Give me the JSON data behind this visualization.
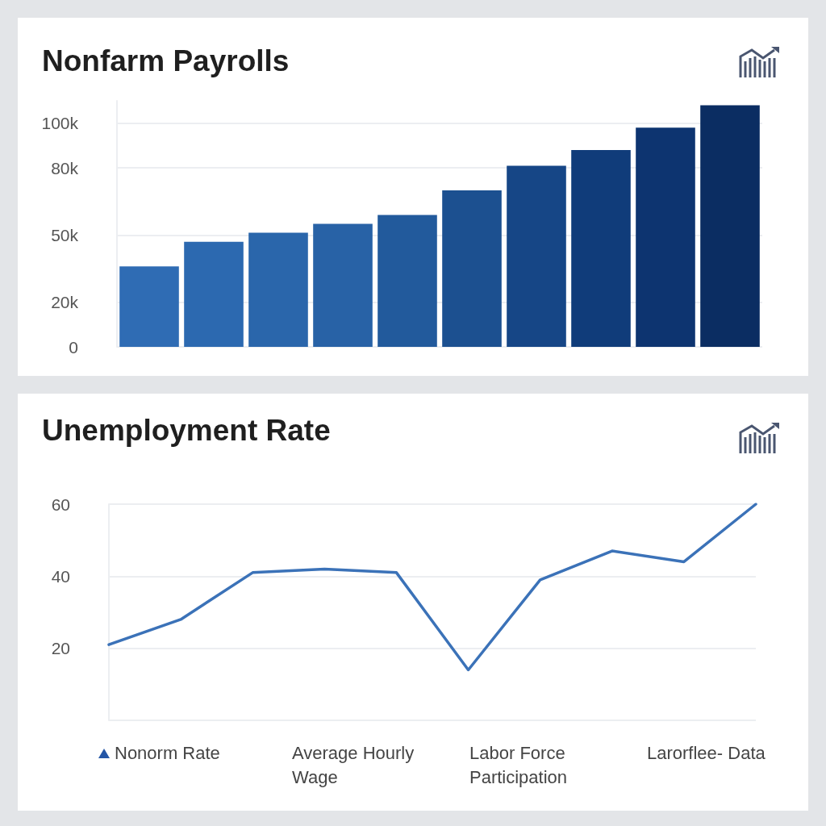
{
  "chart_data": [
    {
      "type": "bar",
      "title": "Nonfarm Payrolls",
      "categories": [
        null,
        null,
        null,
        null,
        null,
        null,
        null,
        null,
        null,
        null
      ],
      "values": [
        36000,
        47000,
        51000,
        55000,
        59000,
        70000,
        81000,
        88000,
        98000,
        108000
      ],
      "colors": [
        "#2f6cb4",
        "#2c69b0",
        "#2a66ab",
        "#2862a6",
        "#225a9c",
        "#1c5090",
        "#164686",
        "#103c7a",
        "#0d3470",
        "#0b2d62"
      ],
      "ylim": [
        0,
        110000
      ],
      "yticks": [
        0,
        {
          "value": 20000,
          "label": "20k"
        },
        {
          "value": 50000,
          "label": "50k"
        },
        {
          "value": 80000,
          "label": "80k"
        },
        {
          "value": 100000,
          "label": "100k"
        }
      ],
      "grid": "y",
      "tick_labels": "y"
    },
    {
      "type": "line",
      "title": "Unemployment Rate",
      "categories": [
        null,
        null,
        null,
        null,
        null,
        null,
        null,
        null,
        null,
        null
      ],
      "series": [
        {
          "color": "#3b72b8",
          "values": [
            21,
            28,
            41,
            42,
            41,
            14,
            39,
            47,
            44,
            60
          ]
        }
      ],
      "ylim": [
        0,
        60
      ],
      "yticks": [
        {
          "value": 0,
          "label": null
        },
        20,
        40,
        60
      ],
      "grid": "y",
      "tick_labels": "y",
      "marker": "none",
      "line_style": "solid",
      "annotations": [
        "Nonorm Rate",
        "Average Hourly Wage",
        "Labor Force Participation",
        "Larorflee- Data"
      ]
    }
  ]
}
